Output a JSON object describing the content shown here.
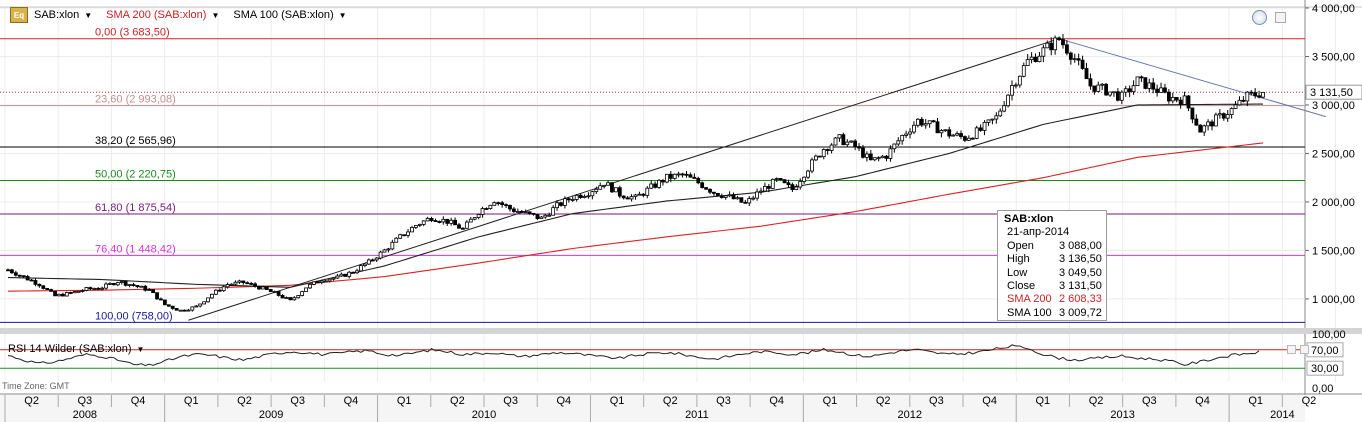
{
  "legend": {
    "icon_label": "Eq",
    "items": [
      {
        "label": "SAB:xlon",
        "color": "#000000"
      },
      {
        "label": "SMA 200 (SAB:xlon)",
        "color": "#cc2222"
      },
      {
        "label": "SMA 100 (SAB:xlon)",
        "color": "#000000"
      }
    ]
  },
  "rsi_legend": {
    "label": "RSI 14 Wilder (SAB:xlon)"
  },
  "time_zone": "Time Zone: GMT",
  "tooltip": {
    "symbol": "SAB:xlon",
    "date": "21-апр-2014",
    "rows": [
      {
        "k": "Open",
        "v": "3 088,00"
      },
      {
        "k": "High",
        "v": "3 136,50"
      },
      {
        "k": "Low",
        "v": "3 049,50"
      },
      {
        "k": "Close",
        "v": "3 131,50"
      },
      {
        "k": "SMA 200",
        "v": "2 608,33",
        "red": true
      },
      {
        "k": "SMA 100",
        "v": "3 009,72"
      }
    ]
  },
  "chart_data": {
    "type": "candlestick",
    "symbol": "SAB:xlon",
    "ylim": [
      700,
      4000
    ],
    "y_ticks": [
      {
        "v": 1000,
        "label": "1 000,00"
      },
      {
        "v": 1500,
        "label": "1 500,00"
      },
      {
        "v": 2000,
        "label": "2 000,00"
      },
      {
        "v": 2500,
        "label": "2 500,00"
      },
      {
        "v": 3000,
        "label": "3 000,00"
      },
      {
        "v": 3500,
        "label": "3 500,00"
      },
      {
        "v": 4000,
        "label": "4 000,00"
      }
    ],
    "last_price": {
      "v": 3131.5,
      "label": "3 131,50"
    },
    "fib_levels": [
      {
        "v": 3683.5,
        "label": "0,00 (3 683,50)",
        "color": "#cc2222"
      },
      {
        "v": 2993.08,
        "label": "23,60 (2 993,08)",
        "color": "#c09090"
      },
      {
        "v": 2565.96,
        "label": "38,20 (2 565,96)",
        "color": "#000000"
      },
      {
        "v": 2220.75,
        "label": "50,00 (2 220,75)",
        "color": "#1e8a1e"
      },
      {
        "v": 1875.54,
        "label": "61,80 (1 875,54)",
        "color": "#7a1a7a"
      },
      {
        "v": 1448.42,
        "label": "76,40 (1 448,42)",
        "color": "#d633d6"
      },
      {
        "v": 758.0,
        "label": "100,00 (758,00)",
        "color": "#1a1a9a"
      }
    ],
    "quarters": [
      "Q2",
      "Q3",
      "Q4",
      "Q1",
      "Q2",
      "Q3",
      "Q4",
      "Q1",
      "Q2",
      "Q3",
      "Q4",
      "Q1",
      "Q2",
      "Q3",
      "Q4",
      "Q1",
      "Q2",
      "Q3",
      "Q4",
      "Q1",
      "Q2",
      "Q3",
      "Q4",
      "Q1",
      "Q2"
    ],
    "years": [
      {
        "label": "2008",
        "q_start": 0,
        "q_end": 2
      },
      {
        "label": "2009",
        "q_start": 3,
        "q_end": 6
      },
      {
        "label": "2010",
        "q_start": 7,
        "q_end": 10
      },
      {
        "label": "2011",
        "q_start": 11,
        "q_end": 14
      },
      {
        "label": "2012",
        "q_start": 15,
        "q_end": 18
      },
      {
        "label": "2013",
        "q_start": 19,
        "q_end": 22
      },
      {
        "label": "2014",
        "q_start": 23,
        "q_end": 24
      }
    ],
    "price_path": [
      [
        0,
        1300
      ],
      [
        2,
        1150
      ],
      [
        3,
        1030
      ],
      [
        4,
        1060
      ],
      [
        5,
        1100
      ],
      [
        6,
        1120
      ],
      [
        7,
        1180
      ],
      [
        8,
        1140
      ],
      [
        9,
        1090
      ],
      [
        10,
        940
      ],
      [
        11,
        880
      ],
      [
        12,
        920
      ],
      [
        13,
        1050
      ],
      [
        14,
        1150
      ],
      [
        15,
        1170
      ],
      [
        16,
        1120
      ],
      [
        17,
        1060
      ],
      [
        18,
        980
      ],
      [
        19,
        1120
      ],
      [
        20,
        1200
      ],
      [
        21,
        1220
      ],
      [
        22,
        1280
      ],
      [
        23,
        1380
      ],
      [
        24,
        1500
      ],
      [
        25,
        1640
      ],
      [
        26,
        1760
      ],
      [
        27,
        1840
      ],
      [
        28,
        1800
      ],
      [
        29,
        1720
      ],
      [
        30,
        1900
      ],
      [
        31,
        2020
      ],
      [
        32,
        1930
      ],
      [
        33,
        1880
      ],
      [
        34,
        1830
      ],
      [
        35,
        1960
      ],
      [
        36,
        2050
      ],
      [
        37,
        2100
      ],
      [
        38,
        2200
      ],
      [
        39,
        2080
      ],
      [
        40,
        2040
      ],
      [
        41,
        2150
      ],
      [
        42,
        2250
      ],
      [
        43,
        2280
      ],
      [
        44,
        2200
      ],
      [
        45,
        2100
      ],
      [
        46,
        2050
      ],
      [
        47,
        1980
      ],
      [
        48,
        2120
      ],
      [
        49,
        2220
      ],
      [
        50,
        2130
      ],
      [
        51,
        2350
      ],
      [
        52,
        2550
      ],
      [
        53,
        2650
      ],
      [
        54,
        2570
      ],
      [
        55,
        2420
      ],
      [
        56,
        2480
      ],
      [
        57,
        2680
      ],
      [
        58,
        2840
      ],
      [
        59,
        2780
      ],
      [
        60,
        2700
      ],
      [
        61,
        2660
      ],
      [
        62,
        2740
      ],
      [
        63,
        2870
      ],
      [
        64,
        3200
      ],
      [
        65,
        3450
      ],
      [
        66,
        3560
      ],
      [
        67,
        3680
      ],
      [
        68,
        3480
      ],
      [
        69,
        3200
      ],
      [
        70,
        3150
      ],
      [
        71,
        3080
      ],
      [
        72,
        3250
      ],
      [
        73,
        3180
      ],
      [
        74,
        3080
      ],
      [
        75,
        3050
      ],
      [
        76,
        2740
      ],
      [
        77,
        2850
      ],
      [
        78,
        2950
      ],
      [
        79,
        3088
      ],
      [
        80,
        3131.5
      ]
    ],
    "candles_per_quarter": 3.2,
    "sma200": [
      [
        0,
        1080
      ],
      [
        6,
        1090
      ],
      [
        12,
        1110
      ],
      [
        18,
        1140
      ],
      [
        24,
        1230
      ],
      [
        30,
        1370
      ],
      [
        36,
        1520
      ],
      [
        42,
        1640
      ],
      [
        48,
        1750
      ],
      [
        54,
        1900
      ],
      [
        60,
        2080
      ],
      [
        66,
        2250
      ],
      [
        72,
        2460
      ],
      [
        80,
        2608.33
      ]
    ],
    "sma100": [
      [
        0,
        1220
      ],
      [
        6,
        1200
      ],
      [
        12,
        1150
      ],
      [
        18,
        1120
      ],
      [
        24,
        1340
      ],
      [
        30,
        1640
      ],
      [
        36,
        1880
      ],
      [
        42,
        2010
      ],
      [
        48,
        2100
      ],
      [
        54,
        2260
      ],
      [
        60,
        2500
      ],
      [
        66,
        2800
      ],
      [
        72,
        3000
      ],
      [
        80,
        3009.72
      ]
    ],
    "trendlines": [
      {
        "from": [
          11.5,
          780
        ],
        "to": [
          67,
          3683.5
        ],
        "color": "#222222"
      },
      {
        "from": [
          67,
          3683.5
        ],
        "to": [
          84,
          2880
        ],
        "color": "#6677aa"
      }
    ],
    "rsi": {
      "name": "RSI 14 Wilder (SAB:xlon)",
      "ylim": [
        0,
        100
      ],
      "levels": [
        {
          "v": 70,
          "label": "70,00"
        },
        {
          "v": 30,
          "label": "30,00"
        }
      ],
      "ticks": [
        {
          "v": 100,
          "label": "100,00"
        },
        {
          "v": 0,
          "label": "0,00"
        }
      ],
      "values": [
        58,
        48,
        40,
        44,
        52,
        60,
        56,
        48,
        38,
        36,
        45,
        55,
        60,
        58,
        52,
        48,
        55,
        62,
        66,
        64,
        60,
        62,
        66,
        68,
        60,
        58,
        64,
        70,
        66,
        60,
        62,
        64,
        58,
        56,
        60,
        64,
        62,
        58,
        54,
        52,
        58,
        62,
        64,
        60,
        54,
        50,
        56,
        62,
        66,
        64,
        60,
        64,
        70,
        66,
        58,
        56,
        62,
        68,
        70,
        64,
        60,
        62,
        66,
        72,
        78,
        74,
        60,
        52,
        48,
        50,
        54,
        56,
        52,
        50,
        46,
        38,
        44,
        52,
        58,
        62,
        66
      ]
    }
  }
}
